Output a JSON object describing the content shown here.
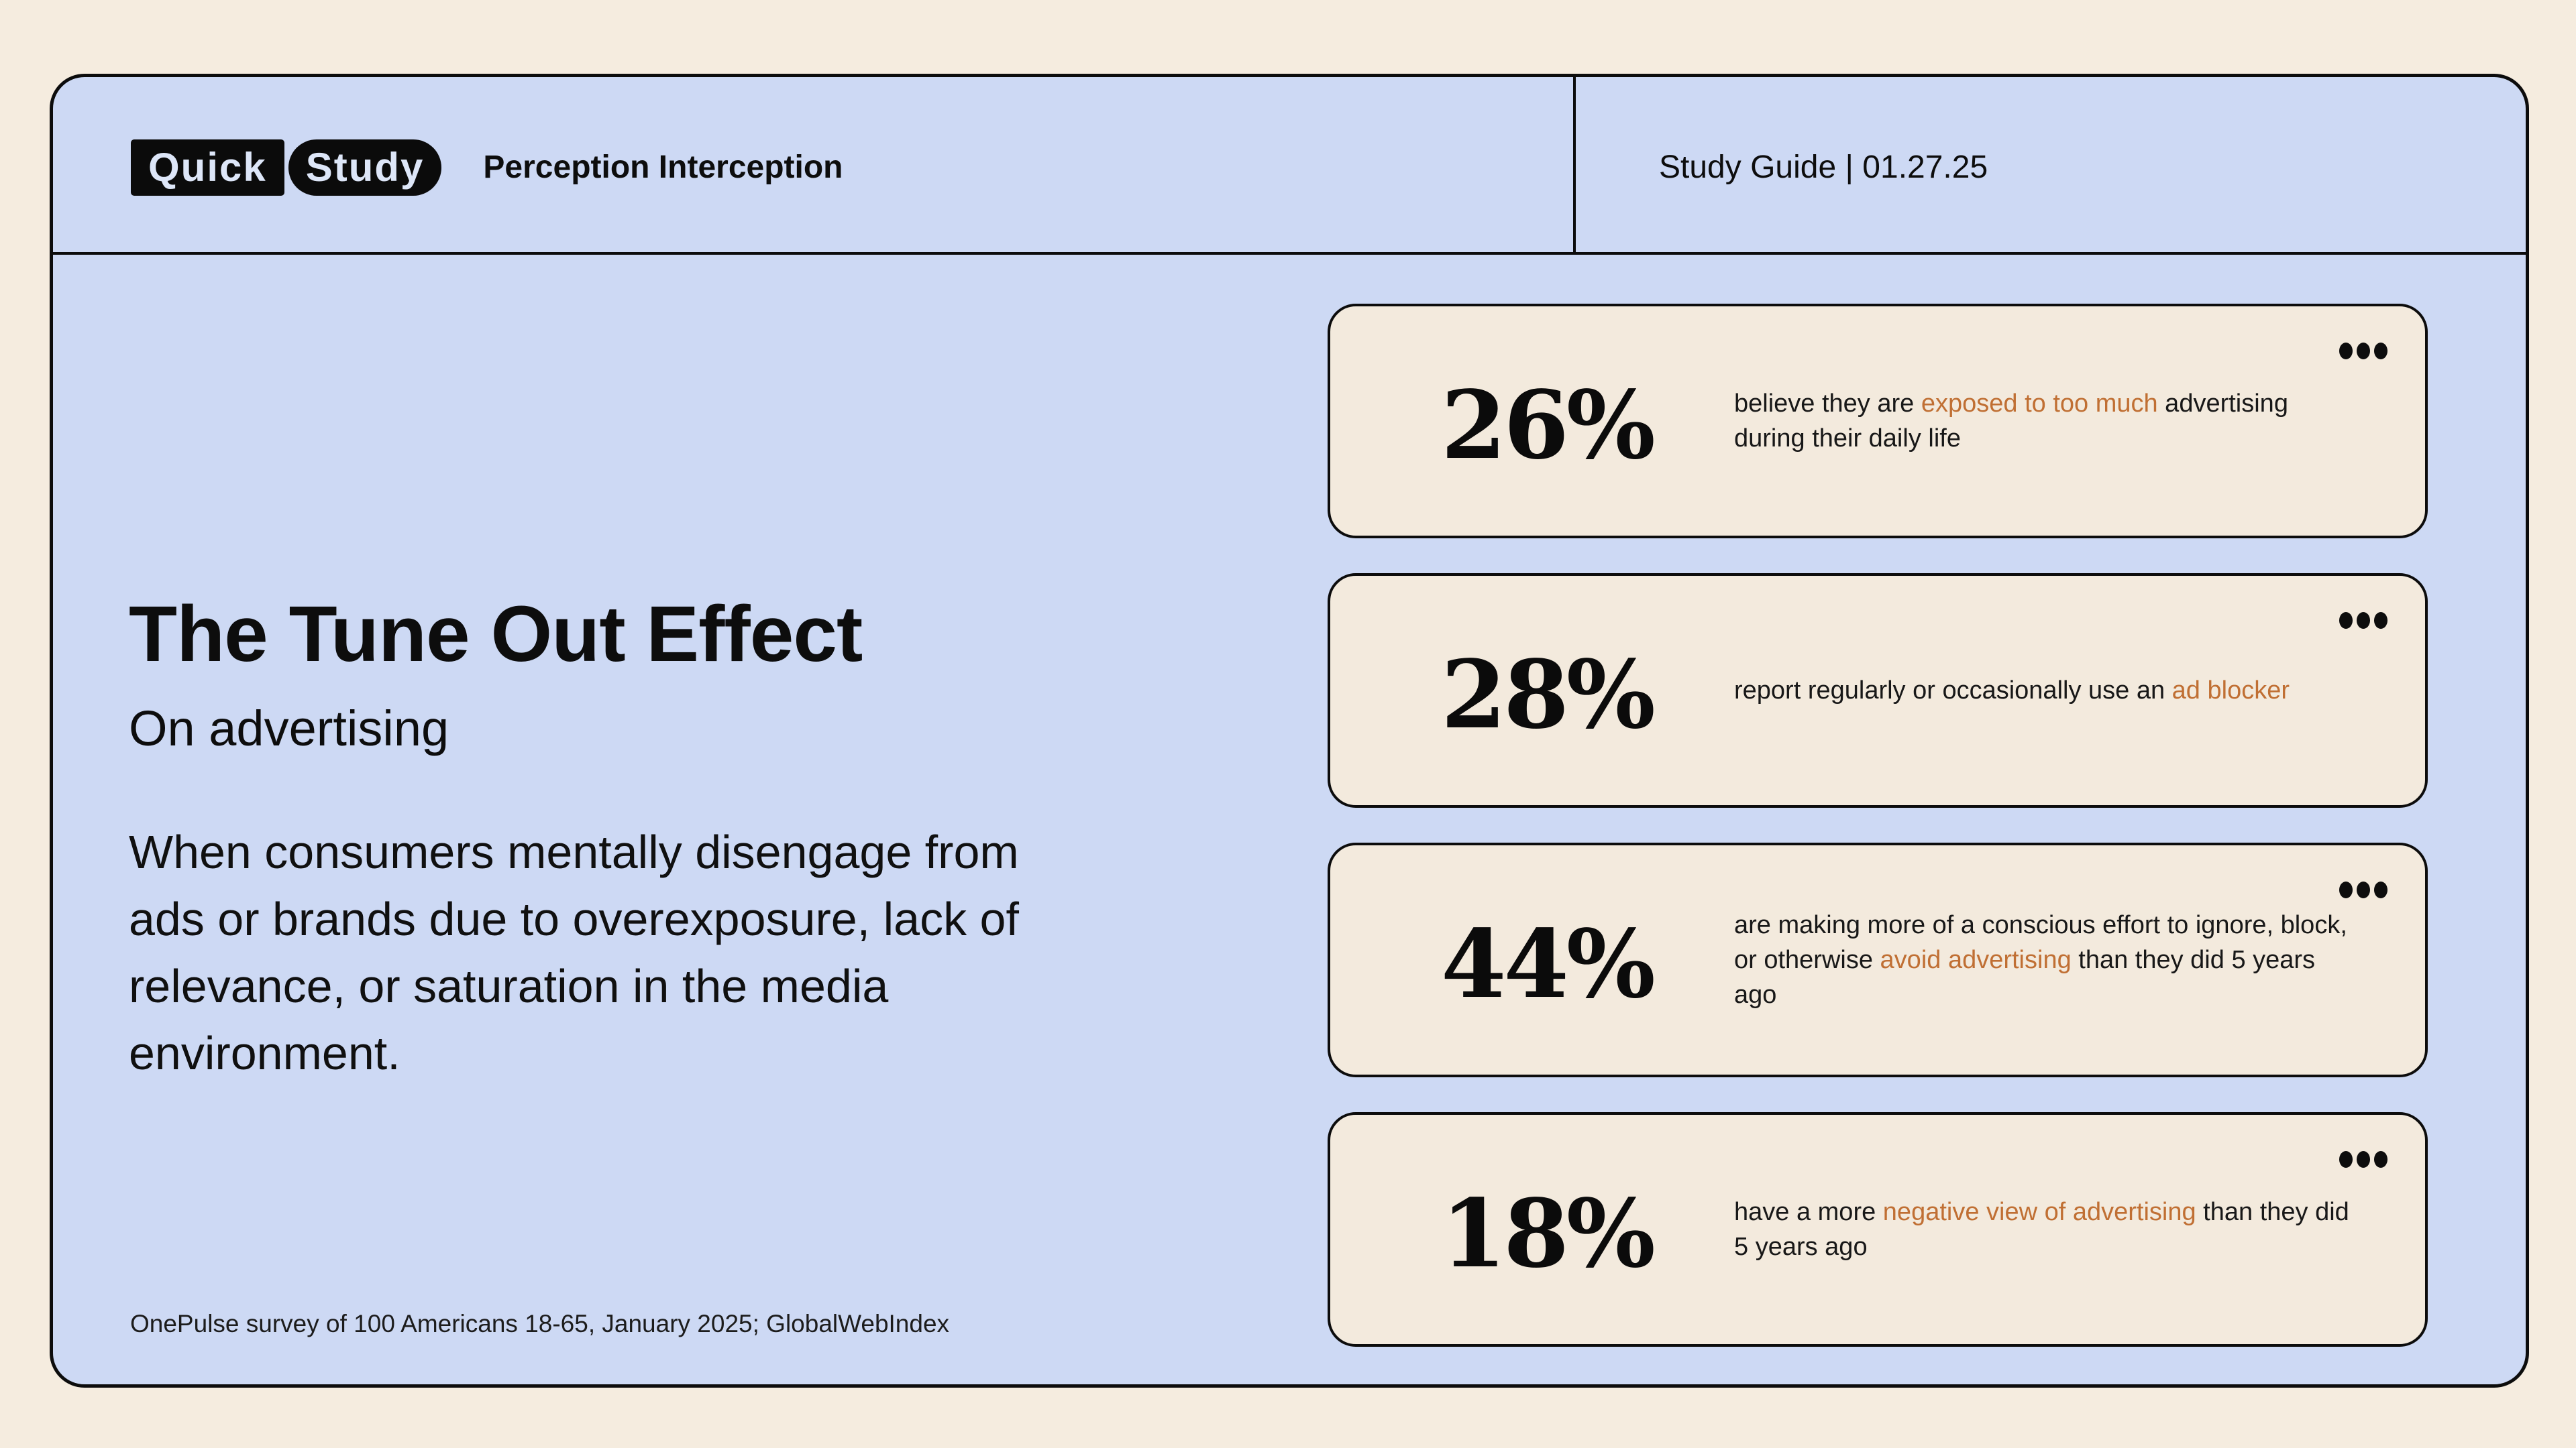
{
  "theme": {
    "page_bg": "#f5ecdf",
    "panel_blue": "#cdd9f4",
    "card_cream": "#f3eadd",
    "accent_orange": "#c06f33",
    "ink_black": "#0c0c0c"
  },
  "header": {
    "logo": {
      "word1": "Quick",
      "word2": "Study"
    },
    "title": "Perception Interception",
    "meta": "Study Guide | 01.27.25"
  },
  "main": {
    "heading": "The Tune Out Effect",
    "subheading": "On advertising",
    "description": "When consumers mentally disengage from ads or brands due to overexposure, lack of relevance, or saturation in the media environment.",
    "source": "OnePulse survey of 100 Americans 18-65, January 2025; GlobalWebIndex"
  },
  "icons": {
    "card_menu": "ellipsis-icon"
  },
  "stats": [
    {
      "value": "26%",
      "text_before": "believe they are ",
      "highlight": "exposed to too much",
      "text_after": " advertising during their daily life"
    },
    {
      "value": "28%",
      "text_before": "report regularly or occasionally use an ",
      "highlight": "ad blocker",
      "text_after": ""
    },
    {
      "value": "44%",
      "text_before": "are making more of a conscious effort to ignore, block, or otherwise ",
      "highlight": "avoid advertising",
      "text_after": " than they did 5 years ago"
    },
    {
      "value": "18%",
      "text_before": "have a more ",
      "highlight": "negative view of advertising",
      "text_after": " than they did 5 years ago"
    }
  ]
}
